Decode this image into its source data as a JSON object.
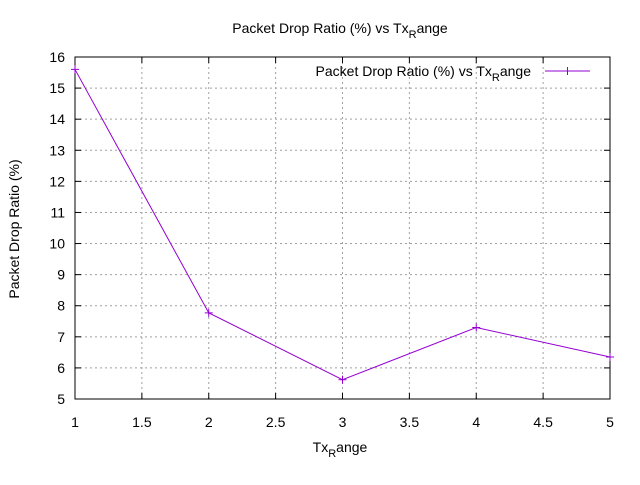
{
  "chart_data": {
    "type": "line",
    "title": {
      "main": "Packet Drop Ratio (%) vs Tx",
      "subscript": "R",
      "tail": "ange"
    },
    "xlabel": {
      "main": "Tx",
      "subscript": "R",
      "tail": "ange"
    },
    "ylabel": "Packet Drop Ratio (%)",
    "xlim": [
      1,
      5
    ],
    "ylim": [
      5,
      16
    ],
    "xticks": [
      "1",
      "1.5",
      "2",
      "2.5",
      "3",
      "3.5",
      "4",
      "4.5",
      "5"
    ],
    "yticks": [
      "5",
      "6",
      "7",
      "8",
      "9",
      "10",
      "11",
      "12",
      "13",
      "14",
      "15",
      "16"
    ],
    "grid": true,
    "legend_position": "top-right",
    "series": [
      {
        "name": {
          "main": "Packet Drop Ratio (%) vs Tx",
          "subscript": "R",
          "tail": "ange"
        },
        "color": "#9400d3",
        "marker": "plus",
        "x": [
          1,
          2,
          3,
          4,
          5
        ],
        "y": [
          15.6,
          7.77,
          5.62,
          7.3,
          6.35
        ]
      }
    ]
  }
}
